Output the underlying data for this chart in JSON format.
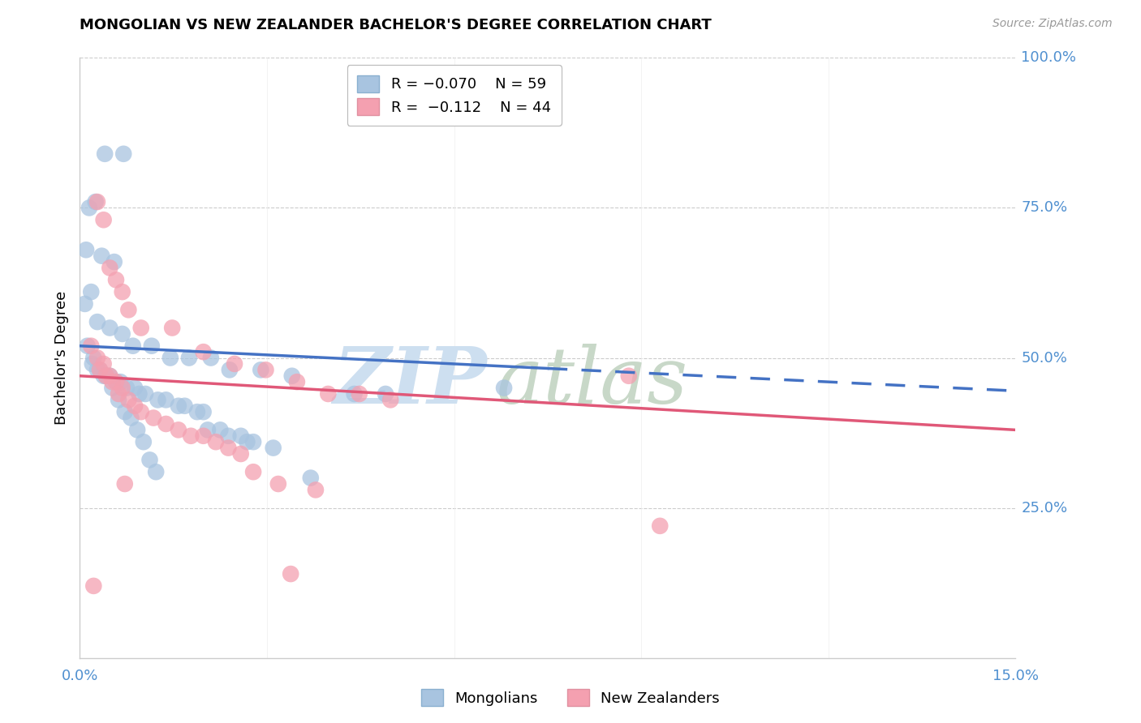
{
  "title": "MONGOLIAN VS NEW ZEALANDER BACHELOR'S DEGREE CORRELATION CHART",
  "source": "Source: ZipAtlas.com",
  "ylabel": "Bachelor's Degree",
  "xmin": 0.0,
  "xmax": 15.0,
  "ymin": 0.0,
  "ymax": 100.0,
  "mongolians_color": "#a8c4e0",
  "nz_color": "#f4a0b0",
  "mongolians_line_color": "#4472c4",
  "nz_line_color": "#e05878",
  "watermark_zip_color": "#cddff0",
  "watermark_atlas_color": "#c8d8c8",
  "grid_color": "#cccccc",
  "right_axis_color": "#5090d0",
  "x_axis_color": "#5090d0",
  "mongo_line_x0": 0.0,
  "mongo_line_y0": 52.0,
  "mongo_line_x1": 15.0,
  "mongo_line_y1": 44.5,
  "mongo_dash_start": 7.5,
  "nz_line_x0": 0.0,
  "nz_line_y0": 47.0,
  "nz_line_x1": 15.0,
  "nz_line_y1": 38.0,
  "mongolians_x": [
    0.4,
    0.7,
    0.15,
    0.25,
    0.1,
    0.35,
    0.55,
    0.18,
    0.08,
    0.28,
    0.48,
    0.68,
    0.85,
    1.15,
    1.45,
    1.75,
    2.1,
    2.4,
    2.9,
    3.4,
    4.4,
    4.9,
    0.2,
    0.28,
    0.38,
    0.48,
    0.58,
    0.65,
    0.75,
    0.88,
    0.95,
    1.05,
    1.25,
    1.38,
    1.58,
    1.68,
    1.88,
    1.98,
    2.05,
    2.25,
    2.38,
    2.58,
    2.68,
    2.78,
    3.1,
    3.7,
    0.12,
    0.22,
    0.32,
    0.42,
    0.52,
    0.62,
    0.72,
    0.82,
    0.92,
    1.02,
    1.12,
    1.22,
    6.8
  ],
  "mongolians_y": [
    84,
    84,
    75,
    76,
    68,
    67,
    66,
    61,
    59,
    56,
    55,
    54,
    52,
    52,
    50,
    50,
    50,
    48,
    48,
    47,
    44,
    44,
    49,
    48,
    47,
    47,
    46,
    46,
    45,
    45,
    44,
    44,
    43,
    43,
    42,
    42,
    41,
    41,
    38,
    38,
    37,
    37,
    36,
    36,
    35,
    30,
    52,
    50,
    48,
    47,
    45,
    43,
    41,
    40,
    38,
    36,
    33,
    31,
    45
  ],
  "nz_x": [
    0.28,
    0.38,
    0.48,
    0.58,
    0.68,
    0.78,
    0.98,
    1.48,
    1.98,
    2.48,
    2.98,
    3.48,
    3.98,
    4.48,
    4.98,
    0.18,
    0.28,
    0.38,
    0.48,
    0.58,
    0.68,
    0.78,
    0.88,
    0.98,
    1.18,
    1.38,
    1.58,
    1.78,
    1.98,
    2.18,
    2.38,
    2.58,
    2.78,
    3.18,
    3.78,
    0.32,
    0.42,
    0.52,
    0.62,
    0.72,
    3.38,
    8.8,
    9.3,
    0.22
  ],
  "nz_y": [
    76,
    73,
    65,
    63,
    61,
    58,
    55,
    55,
    51,
    49,
    48,
    46,
    44,
    44,
    43,
    52,
    50,
    49,
    47,
    46,
    45,
    43,
    42,
    41,
    40,
    39,
    38,
    37,
    37,
    36,
    35,
    34,
    31,
    29,
    28,
    48,
    47,
    46,
    44,
    29,
    14,
    47,
    22,
    12
  ]
}
